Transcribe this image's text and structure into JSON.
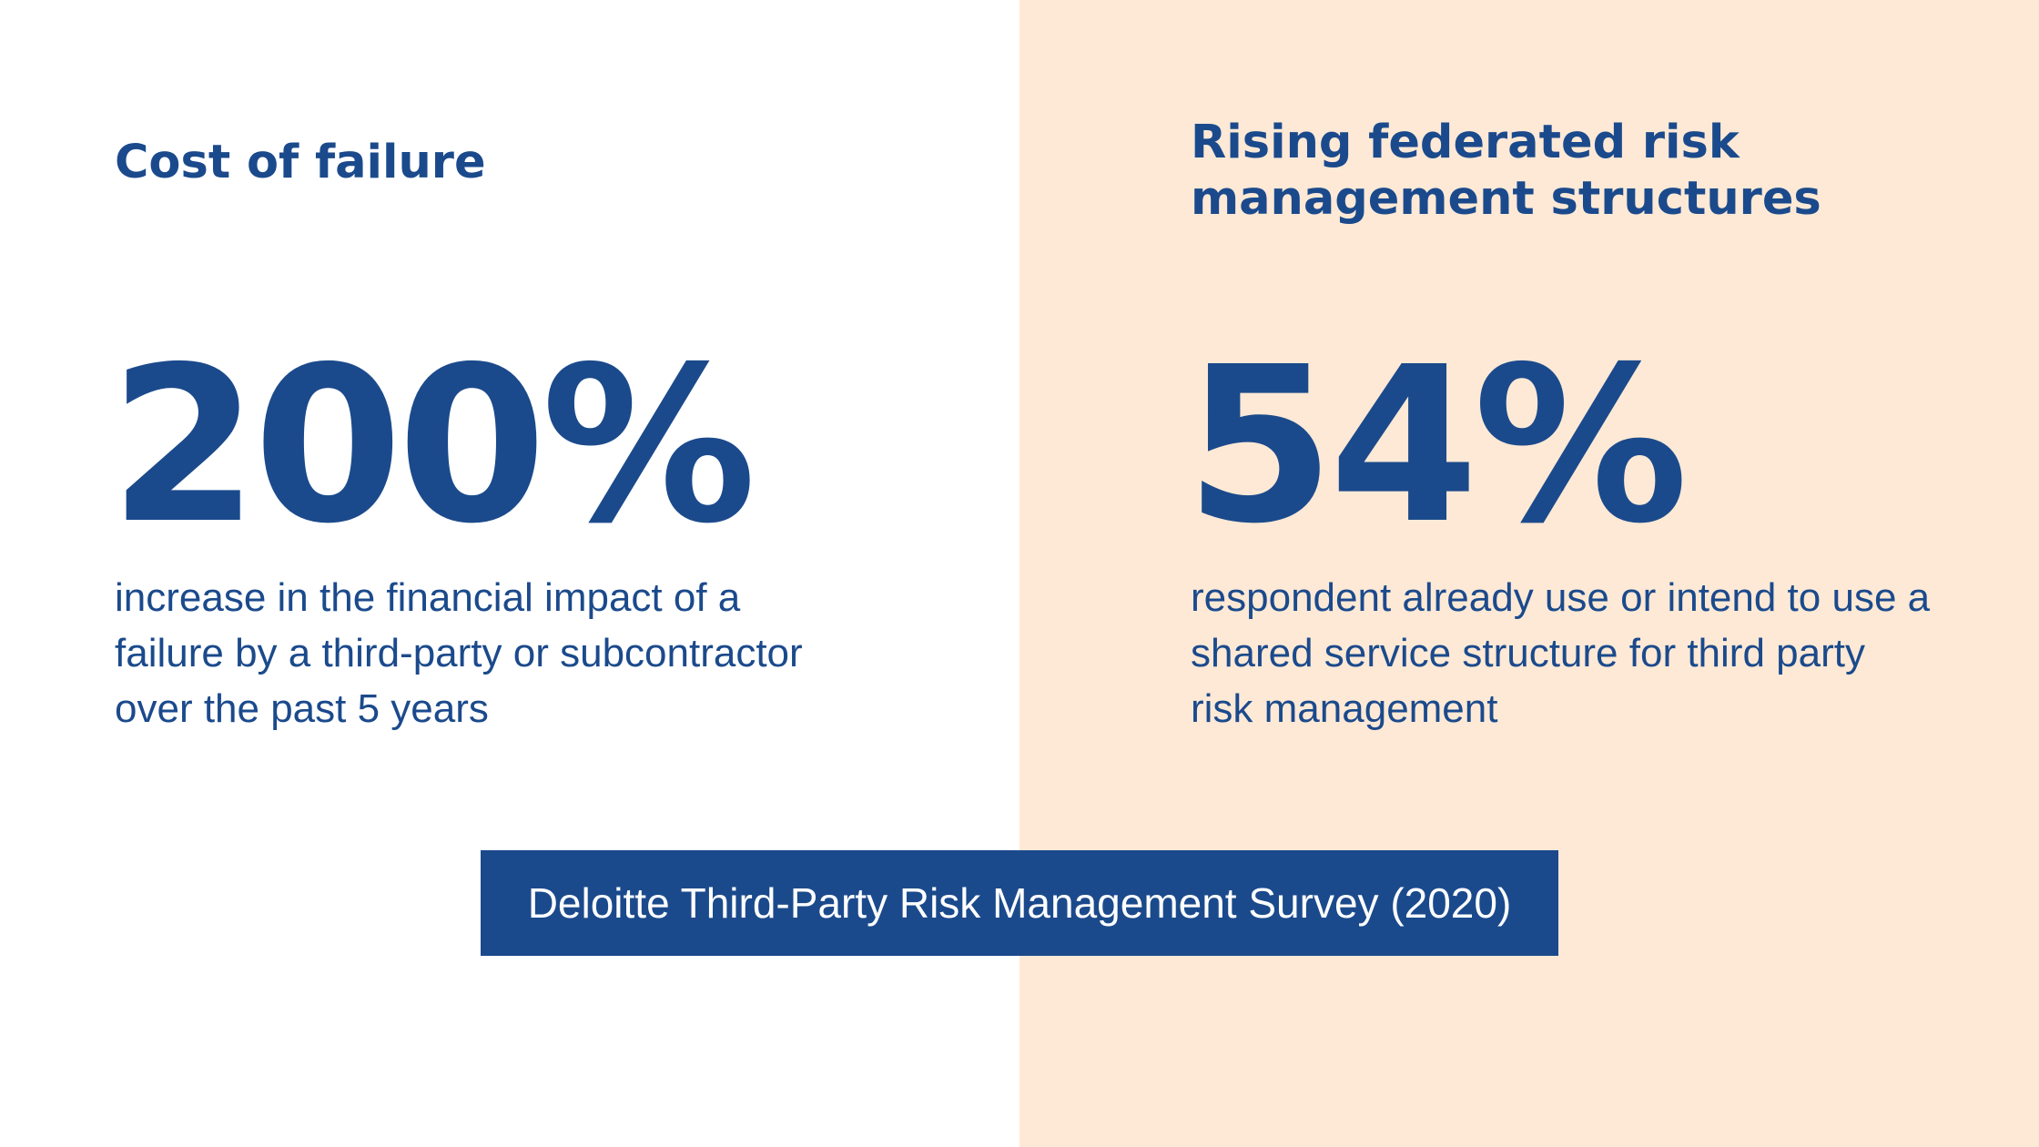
{
  "left_panel": {
    "heading": "Cost of failure",
    "stat": "200%",
    "description": "increase in the financial impact of a failure by a third-party or subcontractor over the past 5 years"
  },
  "right_panel": {
    "heading": "Rising federated risk management structures",
    "stat": "54%",
    "description": "respondent already use or intend to use a shared service structure for third party risk management"
  },
  "source": {
    "label": "Deloitte Third-Party Risk Management Survey (2020)"
  },
  "colors": {
    "primary_blue": "#1b4a8c",
    "peach_background": "#fde9d6",
    "white": "#ffffff"
  }
}
